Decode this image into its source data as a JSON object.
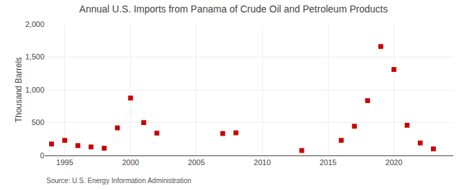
{
  "chart_data": {
    "type": "scatter",
    "title": "Annual U.S. Imports from Panama of Crude Oil and Petroleum Products",
    "ylabel": "Thousand Barrels",
    "annotations": [
      "Source: U.S. Energy Information Administration"
    ],
    "x": [
      1994,
      1995,
      1996,
      1997,
      1998,
      1999,
      2000,
      2001,
      2002,
      2007,
      2008,
      2013,
      2016,
      2017,
      2018,
      2019,
      2020,
      2021,
      2022,
      2023
    ],
    "values": [
      175,
      230,
      150,
      130,
      110,
      420,
      875,
      500,
      340,
      335,
      345,
      75,
      230,
      445,
      835,
      1660,
      1310,
      460,
      190,
      100
    ],
    "xlim": [
      1993.5,
      2024.5
    ],
    "xticks": [
      1995,
      2000,
      2005,
      2010,
      2015,
      2020
    ],
    "ylim": [
      0,
      2000
    ],
    "yticks": [
      0,
      500,
      {
        "value": 1000,
        "label": "1,000"
      },
      {
        "value": 1500,
        "label": "1,500"
      },
      {
        "value": 2000,
        "label": "2,000"
      }
    ],
    "color": "#cc0000",
    "marker": "square",
    "grid": true
  }
}
